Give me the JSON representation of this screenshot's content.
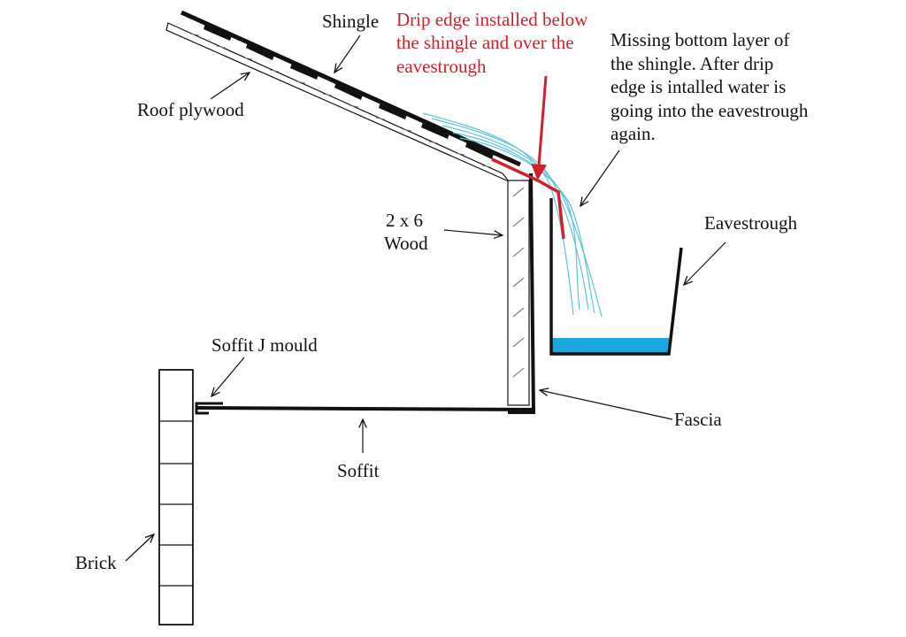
{
  "labels": {
    "shingle": "Shingle",
    "roof_plywood": "Roof plywood",
    "drip_edge": [
      "Drip edge installed below",
      "the shingle and over the",
      "eavestrough"
    ],
    "missing_layer": [
      "Missing bottom layer of",
      "the shingle. After drip",
      "edge is intalled water is",
      "going into the eavestrough",
      "again."
    ],
    "wood": [
      "2 x 6",
      "Wood"
    ],
    "eavestrough": "Eavestrough",
    "soffit_j_mould": "Soffit J mould",
    "fascia": "Fascia",
    "soffit": "Soffit",
    "brick": "Brick"
  },
  "colors": {
    "ink": "#111111",
    "drip_edge": "#d0202a",
    "water": "#1aa6e0",
    "water_stream": "#5fc4d6"
  }
}
